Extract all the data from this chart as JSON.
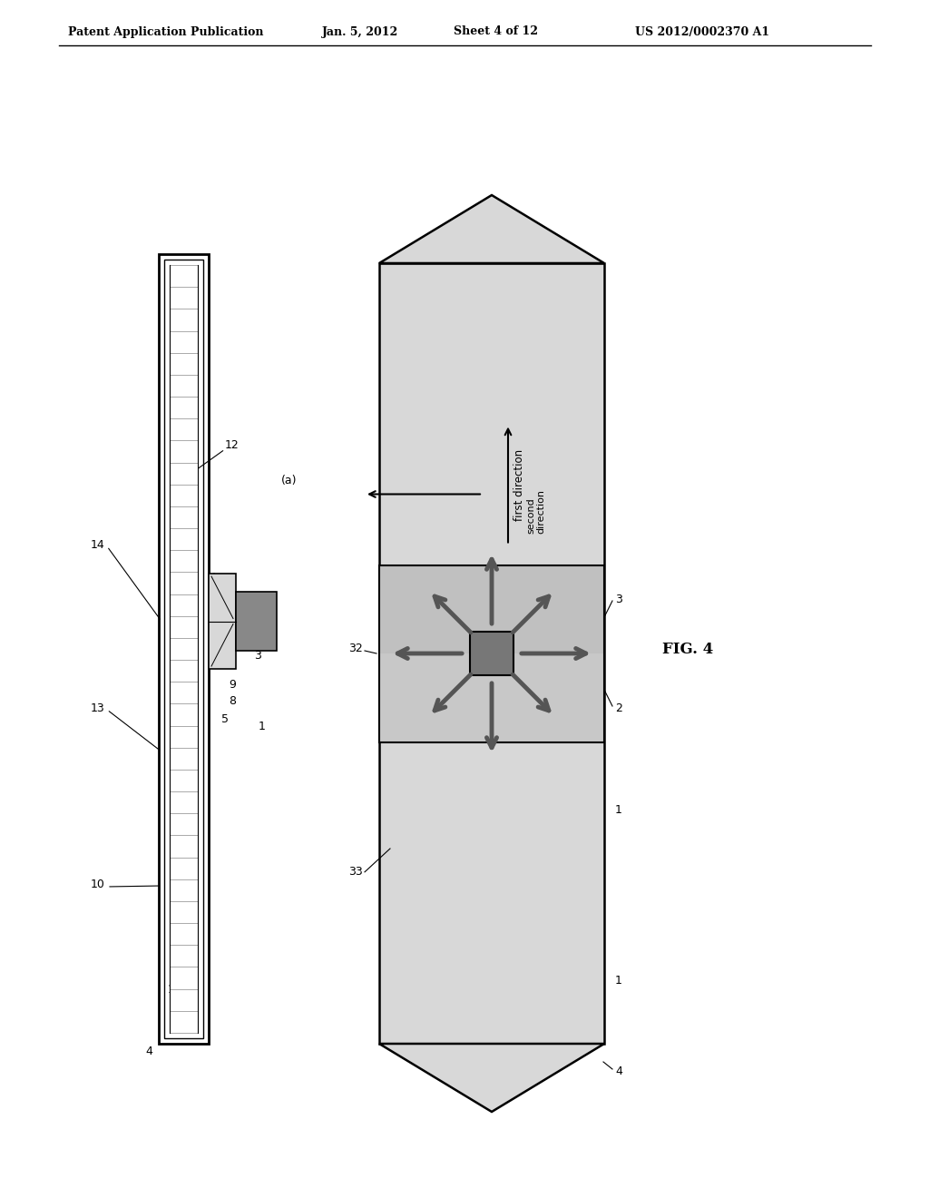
{
  "bg_color": "#ffffff",
  "header_text": "Patent Application Publication",
  "header_date": "Jan. 5, 2012",
  "header_sheet": "Sheet 4 of 12",
  "header_patent": "US 2012/0002370 A1",
  "fig_label": "FIG. 4",
  "body_color": "#d8d8d8",
  "mid_color": "#c0c0c0",
  "center_chip_color": "#888888",
  "arrow_fill": "#aaaaaa",
  "arrow_edge": "#555555"
}
